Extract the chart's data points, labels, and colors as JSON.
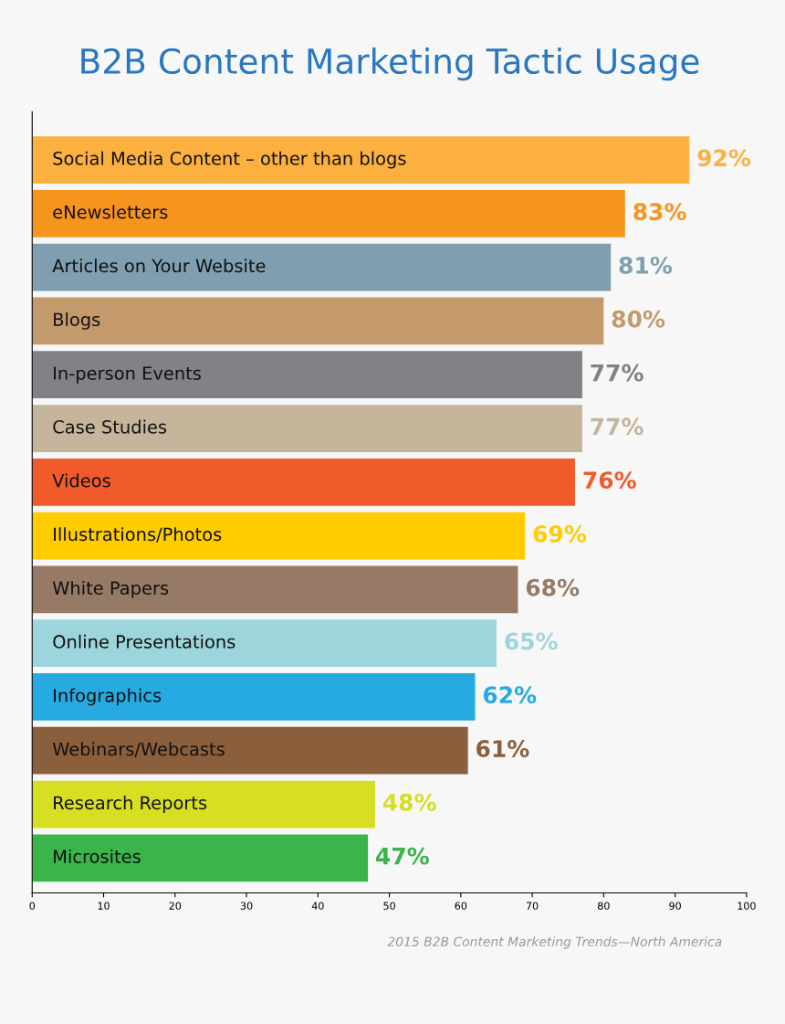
{
  "chart_data": {
    "type": "bar",
    "orientation": "horizontal",
    "title": "B2B Content Marketing Tactic Usage",
    "categories": [
      "Social Media Content – other than blogs",
      "eNewsletters",
      "Articles on Your Website",
      "Blogs",
      "In-person Events",
      "Case Studies",
      "Videos",
      "Illustrations/Photos",
      "White Papers",
      "Online Presentations",
      "Infographics",
      "Webinars/Webcasts",
      "Research Reports",
      "Microsites"
    ],
    "values": [
      92,
      83,
      81,
      80,
      77,
      77,
      76,
      69,
      68,
      65,
      62,
      61,
      48,
      47
    ],
    "value_labels": [
      "92%",
      "83%",
      "81%",
      "80%",
      "77%",
      "77%",
      "76%",
      "69%",
      "68%",
      "65%",
      "62%",
      "61%",
      "48%",
      "47%"
    ],
    "colors": [
      "#fbb040",
      "#f7941d",
      "#7f9fb0",
      "#c49a6c",
      "#808285",
      "#c4b59b",
      "#f15a2b",
      "#ffcc00",
      "#967a65",
      "#9cd6dc",
      "#27aae1",
      "#8b5e3c",
      "#d7df23",
      "#39b54a"
    ],
    "xlim": [
      0,
      100
    ],
    "xticks": [
      0,
      10,
      20,
      30,
      40,
      50,
      60,
      70,
      80,
      90,
      100
    ],
    "grid": false,
    "legend": false,
    "annotations": [
      "2015 B2B Content Marketing Trends—North America"
    ]
  }
}
